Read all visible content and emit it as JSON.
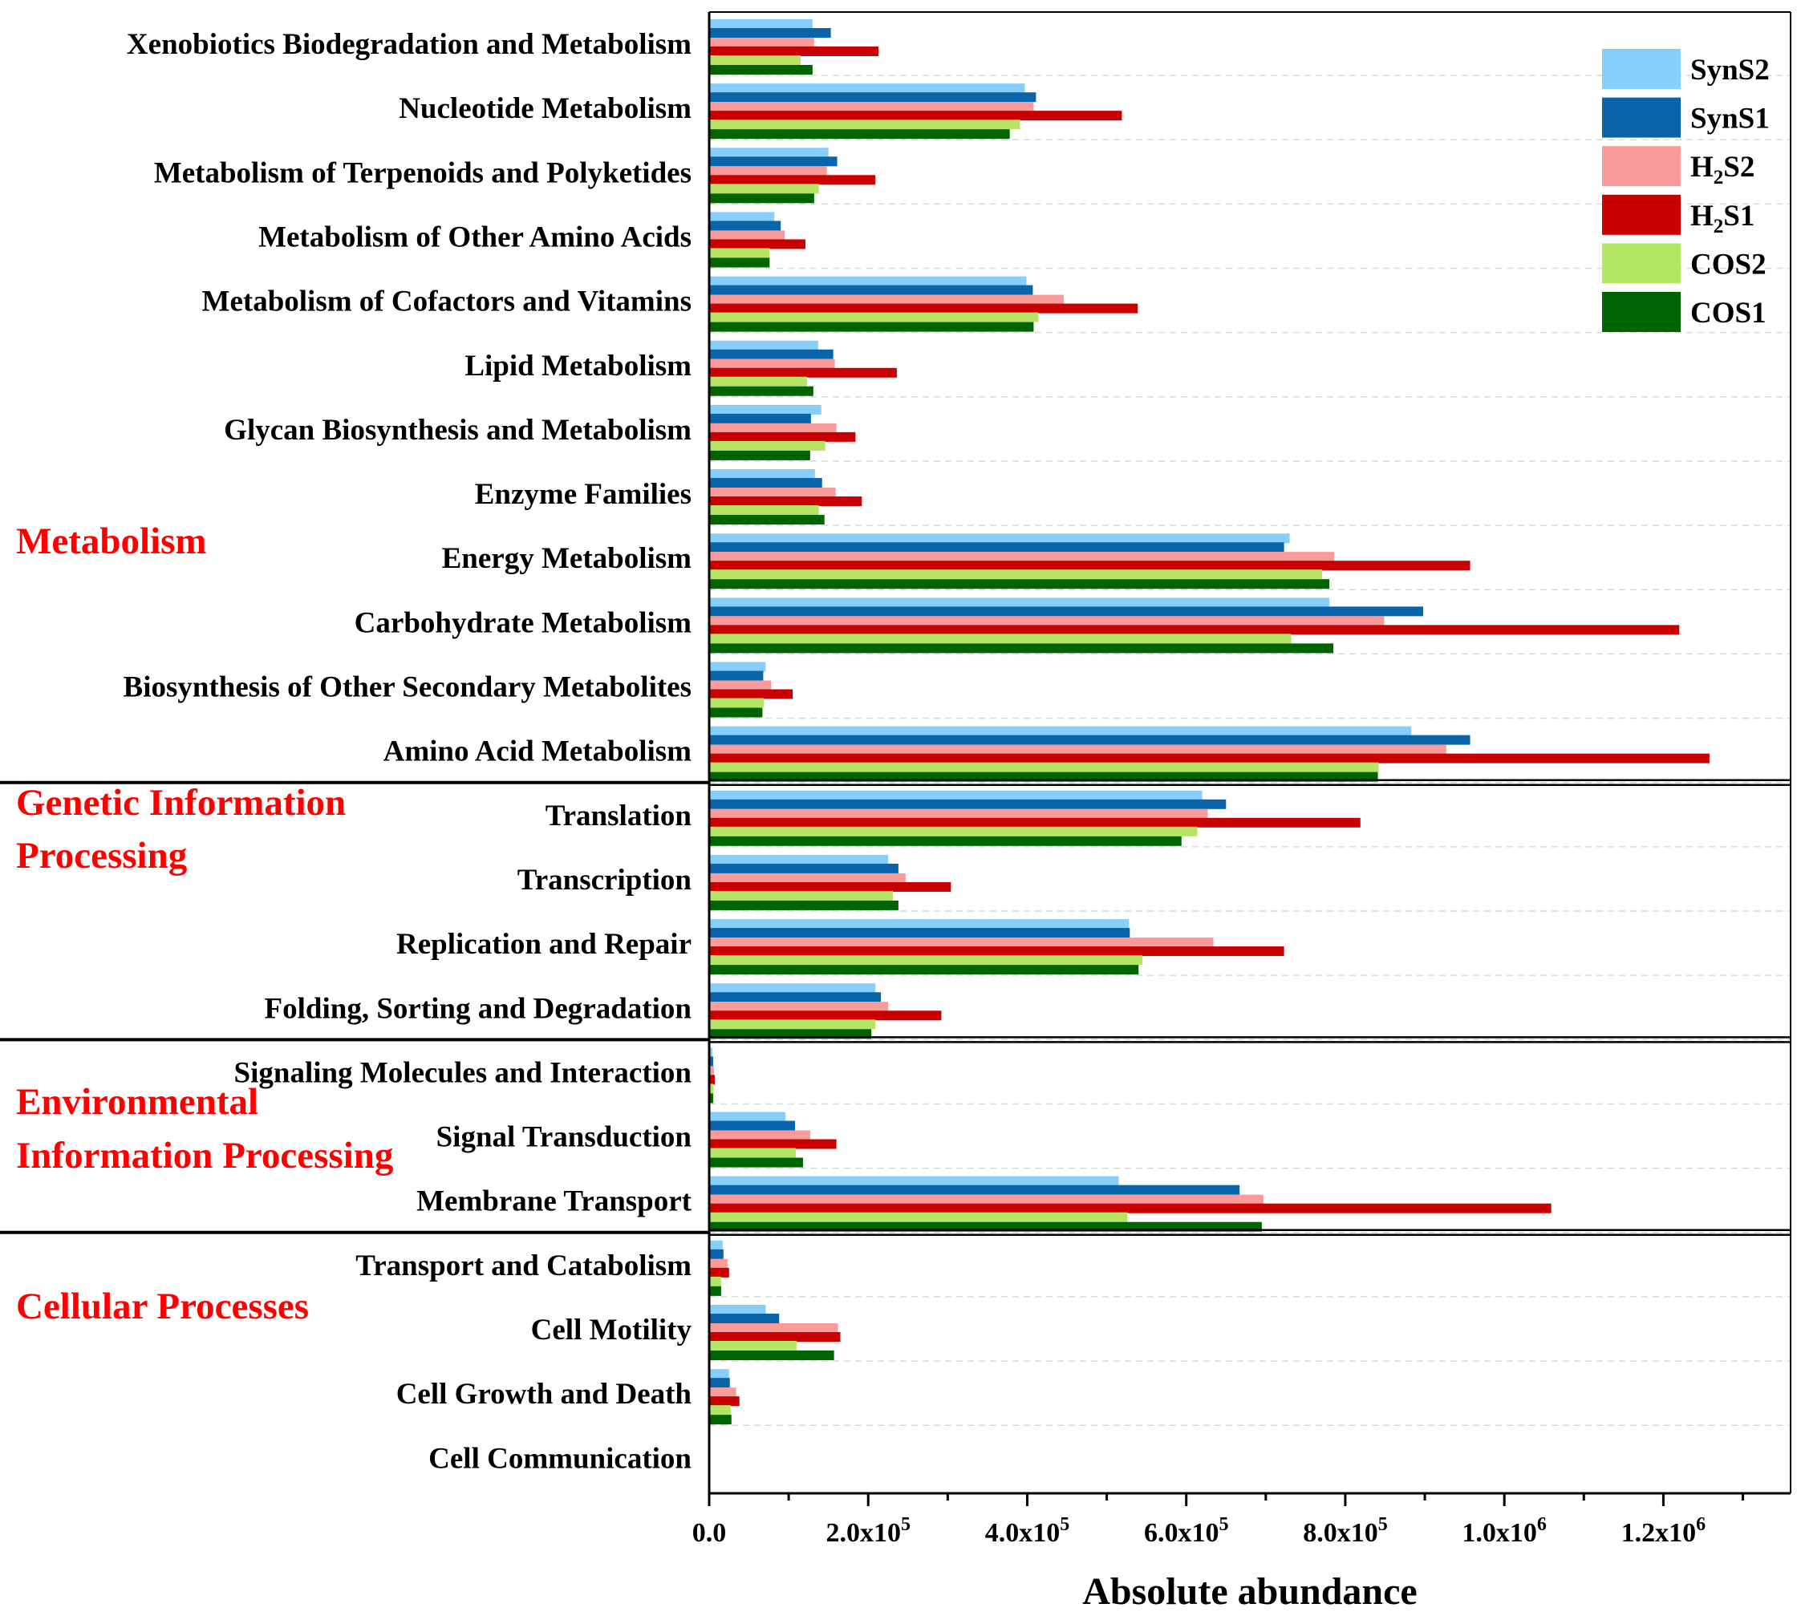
{
  "chart_data": {
    "type": "bar",
    "orientation": "horizontal",
    "xlabel": "Absolute abundance",
    "xlim": [
      0,
      1360000
    ],
    "x_ticks": [
      {
        "value": 0,
        "label": "0.0",
        "exp": ""
      },
      {
        "value": 200000,
        "label": "2.0x10",
        "exp": "5"
      },
      {
        "value": 400000,
        "label": "4.0x10",
        "exp": "5"
      },
      {
        "value": 600000,
        "label": "6.0x10",
        "exp": "5"
      },
      {
        "value": 800000,
        "label": "8.0x10",
        "exp": "5"
      },
      {
        "value": 1000000,
        "label": "1.0x10",
        "exp": "6"
      },
      {
        "value": 1200000,
        "label": "1.2x10",
        "exp": "6"
      }
    ],
    "legend_position": "top-right",
    "series": [
      {
        "name": "SynS2",
        "label_main": "SynS2",
        "label_sub": "",
        "label_tail": "",
        "color": "#87cefa"
      },
      {
        "name": "SynS1",
        "label_main": "SynS1",
        "label_sub": "",
        "label_tail": "",
        "color": "#0a64aa"
      },
      {
        "name": "H2S2",
        "label_main": "H",
        "label_sub": "2",
        "label_tail": "S2",
        "color": "#fa9b9b"
      },
      {
        "name": "H2S1",
        "label_main": "H",
        "label_sub": "2",
        "label_tail": "S1",
        "color": "#c80000"
      },
      {
        "name": "COS2",
        "label_main": "COS2",
        "label_sub": "",
        "label_tail": "",
        "color": "#b4e664"
      },
      {
        "name": "COS1",
        "label_main": "COS1",
        "label_sub": "",
        "label_tail": "",
        "color": "#006400"
      }
    ],
    "groups": [
      {
        "name": "Metabolism",
        "lines": [
          "Metabolism"
        ],
        "color": "#ff0000",
        "categories": [
          {
            "name": "Xenobiotics Biodegradation and Metabolism",
            "values": [
              130000,
              153000,
              132000,
              213000,
              115000,
              130000
            ]
          },
          {
            "name": "Nucleotide Metabolism",
            "values": [
              397000,
              411000,
              408000,
              519000,
              391000,
              378000
            ]
          },
          {
            "name": "Metabolism of Terpenoids and Polyketides",
            "values": [
              150000,
              161000,
              148000,
              209000,
              138000,
              132000
            ]
          },
          {
            "name": "Metabolism of Other Amino Acids",
            "values": [
              82000,
              90000,
              95000,
              121000,
              76000,
              76000
            ]
          },
          {
            "name": "Metabolism of Cofactors and Vitamins",
            "values": [
              399000,
              407000,
              446000,
              539000,
              414000,
              408000
            ]
          },
          {
            "name": "Lipid Metabolism",
            "values": [
              137000,
              156000,
              158000,
              236000,
              123000,
              131000
            ]
          },
          {
            "name": "Glycan Biosynthesis and Metabolism",
            "values": [
              141000,
              128000,
              160000,
              184000,
              146000,
              127000
            ]
          },
          {
            "name": "Enzyme Families",
            "values": [
              133000,
              142000,
              159000,
              192000,
              138000,
              145000
            ]
          },
          {
            "name": "Energy Metabolism",
            "values": [
              730000,
              723000,
              786000,
              957000,
              771000,
              780000
            ]
          },
          {
            "name": "Carbohydrate Metabolism",
            "values": [
              780000,
              898000,
              849000,
              1220000,
              732000,
              785000
            ]
          },
          {
            "name": "Biosynthesis of Other Secondary Metabolites",
            "values": [
              71000,
              68000,
              78000,
              105000,
              69000,
              67000
            ]
          },
          {
            "name": "Amino Acid Metabolism",
            "values": [
              883000,
              957000,
              927000,
              1258000,
              842000,
              841000
            ]
          }
        ]
      },
      {
        "name": "Genetic Information Processing",
        "lines": [
          "Genetic Information",
          "Processing"
        ],
        "color": "#ff0000",
        "categories": [
          {
            "name": "Translation",
            "values": [
              620000,
              650000,
              627000,
              819000,
              614000,
              594000
            ]
          },
          {
            "name": "Transcription",
            "values": [
              225000,
              238000,
              247000,
              304000,
              231000,
              238000
            ]
          },
          {
            "name": "Replication and Repair",
            "values": [
              528000,
              529000,
              634000,
              723000,
              545000,
              540000
            ]
          },
          {
            "name": "Folding, Sorting and Degradation",
            "values": [
              209000,
              216000,
              225000,
              292000,
              209000,
              204000
            ]
          }
        ]
      },
      {
        "name": "Environmental Information Processing",
        "lines": [
          "Environmental",
          "Information Processing"
        ],
        "color": "#ff0000",
        "categories": [
          {
            "name": "Signaling Molecules and Interaction",
            "values": [
              4000,
              5000,
              6000,
              7000,
              5000,
              5000
            ]
          },
          {
            "name": "Signal Transduction",
            "values": [
              96000,
              108000,
              127000,
              160000,
              109000,
              118000
            ]
          },
          {
            "name": "Membrane Transport",
            "values": [
              515000,
              667000,
              697000,
              1059000,
              526000,
              695000
            ]
          }
        ]
      },
      {
        "name": "Cellular Processes",
        "lines": [
          "Cellular Processes"
        ],
        "color": "#ff0000",
        "categories": [
          {
            "name": "Transport and Catabolism",
            "values": [
              17000,
              18000,
              23000,
              25000,
              15000,
              15000
            ]
          },
          {
            "name": "Cell Motility",
            "values": [
              71000,
              88000,
              162000,
              165000,
              110000,
              157000
            ]
          },
          {
            "name": "Cell Growth and Death",
            "values": [
              25000,
              26000,
              34000,
              38000,
              27000,
              28000
            ]
          },
          {
            "name": "Cell Communication",
            "values": [
              0,
              0,
              0,
              0,
              0,
              0
            ]
          }
        ]
      }
    ]
  }
}
